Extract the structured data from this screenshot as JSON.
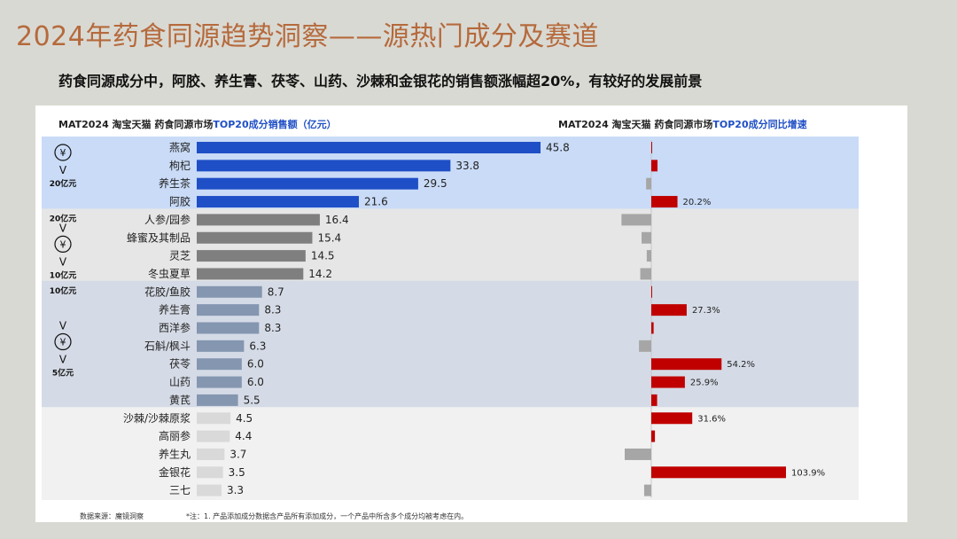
{
  "page": {
    "title": "2024年药食同源趋势洞察——源热门成分及赛道",
    "subtitle": "药食同源成分中，阿胶、养生膏、茯苓、山药、沙棘和金银花的销售额涨幅超20%，有较好的发展前景",
    "source": "数据来源：魔镜洞察",
    "note": "*注：1. 产品添加成分数据含产品所有添加成分，一个产品中所含多个成分均被考虑在内。"
  },
  "colors": {
    "tier1_bg": "#c9dbf7",
    "tier2_bg": "#e6e6e6",
    "tier3_bg": "#d5dbe6",
    "tier4_bg": "#f1f1f1",
    "tier1_bar": "#1f4fc6",
    "tier2_bar": "#7f7f7f",
    "tier3_bar": "#8496b0",
    "tier4_bar": "#d9d9d9",
    "growth_pos": "#c00000",
    "growth_neg": "#a6a6a6"
  },
  "tiers": [
    {
      "symbol": "¥",
      "upper": "",
      "lower": "20亿元",
      "bg": "tier1_bg"
    },
    {
      "symbol": "¥",
      "upper": "20亿元",
      "lower": "10亿元",
      "bg": "tier2_bg"
    },
    {
      "symbol": "¥",
      "upper": "10亿元",
      "lower": "5亿元",
      "bg": "tier3_bg"
    },
    {
      "symbol": "",
      "upper": "",
      "lower": "",
      "bg": "tier4_bg"
    }
  ],
  "chart_data": [
    {
      "type": "bar",
      "orientation": "horizontal",
      "title_prefix": "MAT2024 淘宝天猫 药食同源市场",
      "title_highlight": "TOP20成分销售额（亿元）",
      "categories": [
        "燕窝",
        "枸杞",
        "养生茶",
        "阿胶",
        "人参/园参",
        "蜂蜜及其制品",
        "灵芝",
        "冬虫夏草",
        "花胶/鱼胶",
        "养生膏",
        "西洋参",
        "石斛/枫斗",
        "茯苓",
        "山药",
        "黄芪",
        "沙棘/沙棘原浆",
        "高丽参",
        "养生丸",
        "金银花",
        "三七"
      ],
      "values": [
        45.8,
        33.8,
        29.5,
        21.6,
        16.4,
        15.4,
        14.5,
        14.2,
        8.7,
        8.3,
        8.3,
        6.3,
        6.0,
        6.0,
        5.5,
        4.5,
        4.4,
        3.7,
        3.5,
        3.3
      ],
      "value_labels": [
        "45.8",
        "33.8",
        "29.5",
        "21.6",
        "16.4",
        "15.4",
        "14.5",
        "14.2",
        "8.7",
        "8.3",
        "8.3",
        "6.3",
        "6.0",
        "6.0",
        "5.5",
        "4.5",
        "4.4",
        "3.7",
        "3.5",
        "3.3"
      ],
      "tier_of_row": [
        0,
        0,
        0,
        0,
        1,
        1,
        1,
        1,
        2,
        2,
        2,
        2,
        2,
        2,
        2,
        3,
        3,
        3,
        3,
        3
      ],
      "xlim": [
        0,
        50
      ]
    },
    {
      "type": "bar",
      "orientation": "horizontal",
      "title_prefix": "MAT2024 淘宝天猫 药食同源市场",
      "title_highlight": "TOP20成分同比增速",
      "categories": [
        "燕窝",
        "枸杞",
        "养生茶",
        "阿胶",
        "人参/园参",
        "蜂蜜及其制品",
        "灵芝",
        "冬虫夏草",
        "花胶/鱼胶",
        "养生膏",
        "西洋参",
        "石斛/枫斗",
        "茯苓",
        "山药",
        "黄芪",
        "沙棘/沙棘原浆",
        "高丽参",
        "养生丸",
        "金银花",
        "三七"
      ],
      "values": [
        0.3,
        4.8,
        -4.0,
        20.2,
        -23.0,
        -7.5,
        -3.5,
        -8.5,
        0.3,
        27.3,
        1.8,
        -9.5,
        54.2,
        25.9,
        4.5,
        31.6,
        2.8,
        -20.5,
        103.9,
        -5.5
      ],
      "value_labels": [
        "",
        "",
        "",
        "20.2%",
        "",
        "",
        "",
        "",
        "",
        "27.3%",
        "",
        "",
        "54.2%",
        "25.9%",
        "",
        "31.6%",
        "",
        "",
        "103.9%",
        ""
      ],
      "unit": "%",
      "xlim": [
        -30,
        110
      ]
    }
  ]
}
